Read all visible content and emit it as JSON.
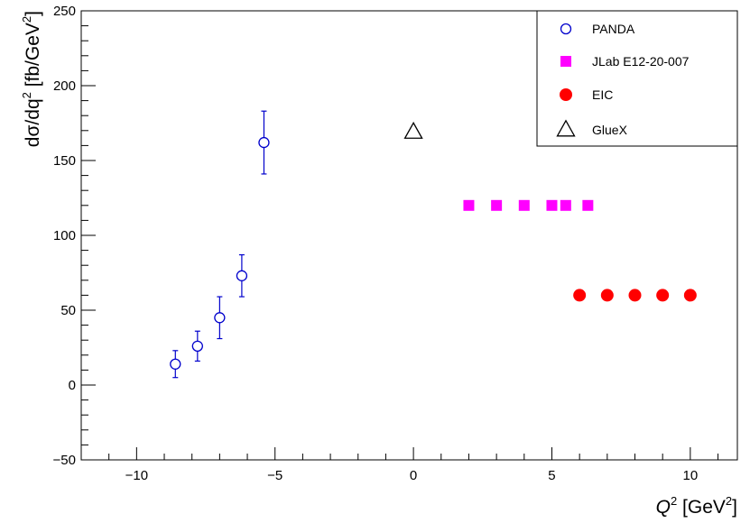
{
  "chart_data": {
    "type": "scatter",
    "title": "",
    "xlabel_base": "Q",
    "xlabel_exp": "2",
    "xlabel_rest": " [GeV",
    "xlabel_rest_exp": "2",
    "xlabel_tail": "]",
    "ylabel_base": "dσ/dq",
    "ylabel_exp": "2",
    "ylabel_rest": " [fb/GeV",
    "ylabel_rest_exp": "2",
    "ylabel_tail": "]",
    "xlim": [
      -12,
      11.7
    ],
    "ylim": [
      -50,
      250
    ],
    "x_ticks": [
      -10,
      -5,
      0,
      5,
      10
    ],
    "x_tick_labels": [
      "−10",
      "−5",
      "0",
      "5",
      "10"
    ],
    "y_ticks": [
      -50,
      0,
      50,
      100,
      150,
      200,
      250
    ],
    "y_tick_labels": [
      "−50",
      "0",
      "50",
      "100",
      "150",
      "200",
      "250"
    ],
    "grid": false,
    "legend_position": "top-right",
    "series": [
      {
        "name": "PANDA",
        "marker": "open-circle",
        "color": "#0000cc",
        "x": [
          -8.6,
          -7.8,
          -7.0,
          -6.2,
          -5.4
        ],
        "y": [
          14,
          26,
          45,
          73,
          162
        ],
        "err": [
          9,
          10,
          14,
          14,
          21
        ]
      },
      {
        "name": "JLab E12-20-007",
        "marker": "filled-square",
        "color": "#ff00ff",
        "x": [
          2,
          3,
          4,
          5,
          5.5,
          6.3
        ],
        "y": [
          120,
          120,
          120,
          120,
          120,
          120
        ]
      },
      {
        "name": "EIC",
        "marker": "filled-circle",
        "color": "#ff0000",
        "x": [
          6,
          7,
          8,
          9,
          10
        ],
        "y": [
          60,
          60,
          60,
          60,
          60
        ]
      },
      {
        "name": "GlueX",
        "marker": "open-triangle",
        "color": "#000000",
        "x": [
          0
        ],
        "y": [
          169
        ]
      }
    ]
  }
}
